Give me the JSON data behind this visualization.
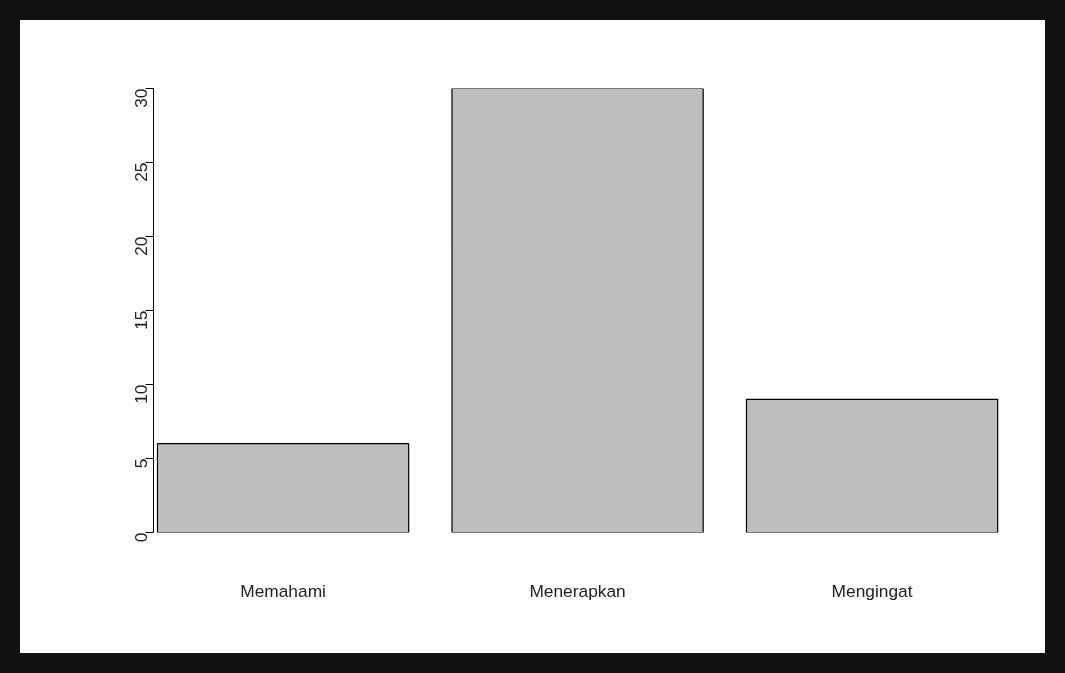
{
  "chart_data": {
    "type": "bar",
    "categories": [
      "Memahami",
      "Menerapkan",
      "Mengingat"
    ],
    "values": [
      6,
      30,
      9
    ],
    "color": "#bebebe",
    "ylim": [
      0,
      30
    ],
    "yticks": [
      0,
      5,
      10,
      15,
      20,
      25,
      30
    ],
    "grid": false
  }
}
